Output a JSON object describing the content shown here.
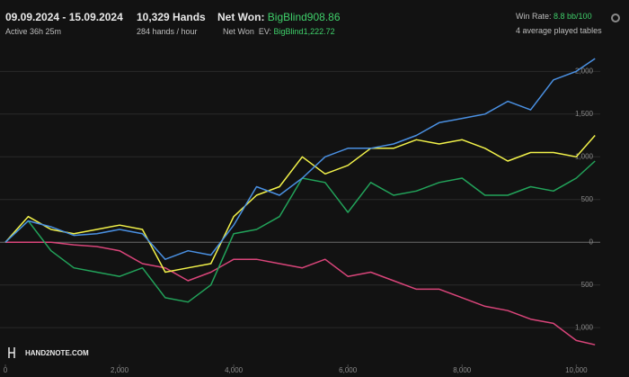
{
  "header": {
    "date_range": "09.09.2024 - 15.09.2024",
    "active": "Active 36h 25m",
    "hands": "10,329 Hands",
    "hands_per_hour": "284 hands / hour",
    "net_won_label": "Net Won:",
    "net_won_value": "BigBlind908.86",
    "net_won_ev_label": "Net Won  EV:",
    "net_won_ev_value": "BigBlind1,222.72",
    "win_rate_label": "Win Rate:",
    "win_rate_value": "8.8 bb/100",
    "tables": "4 average played tables",
    "logo": "HAND2NOTE.COM"
  },
  "chart_data": {
    "type": "line",
    "x": [
      0,
      400,
      800,
      1200,
      1600,
      2000,
      2400,
      2800,
      3200,
      3600,
      4000,
      4400,
      4800,
      5200,
      5600,
      6000,
      6400,
      6800,
      7200,
      7600,
      8000,
      8400,
      8800,
      9200,
      9600,
      10000,
      10329
    ],
    "series": [
      {
        "color": "#4a90e2",
        "values": [
          0,
          250,
          180,
          80,
          100,
          150,
          100,
          -200,
          -100,
          -150,
          200,
          650,
          550,
          750,
          1000,
          1100,
          1100,
          1150,
          1250,
          1400,
          1450,
          1500,
          1650,
          1550,
          1900,
          2000,
          2150
        ]
      },
      {
        "color": "#f2f24a",
        "values": [
          0,
          300,
          150,
          100,
          150,
          200,
          150,
          -350,
          -300,
          -250,
          300,
          550,
          650,
          1000,
          800,
          900,
          1100,
          1100,
          1200,
          1150,
          1200,
          1100,
          950,
          1050,
          1050,
          1000,
          1250
        ]
      },
      {
        "color": "#22a35a",
        "values": [
          0,
          250,
          -100,
          -300,
          -350,
          -400,
          -300,
          -650,
          -700,
          -500,
          100,
          150,
          300,
          750,
          700,
          350,
          700,
          550,
          600,
          700,
          750,
          550,
          550,
          650,
          600,
          750,
          950
        ]
      },
      {
        "color": "#d9457a",
        "values": [
          0,
          0,
          0,
          -30,
          -50,
          -100,
          -250,
          -300,
          -450,
          -350,
          -200,
          -200,
          -250,
          -300,
          -200,
          -400,
          -350,
          -450,
          -550,
          -550,
          -650,
          -750,
          -800,
          -900,
          -950,
          -1150,
          -1200
        ]
      }
    ],
    "xlim": [
      0,
      10420
    ],
    "ylim": [
      -1430,
      2330
    ],
    "xticks": [
      0,
      {
        "value": 2000,
        "label": "2,000"
      },
      {
        "value": 4000,
        "label": "4,000"
      },
      {
        "value": 6000,
        "label": "6,000"
      },
      {
        "value": 8000,
        "label": "8,000"
      },
      {
        "value": 10000,
        "label": "10,000"
      }
    ],
    "yticks": [
      {
        "value": 2000,
        "label": "2,000"
      },
      {
        "value": 1500,
        "label": "1,500"
      },
      {
        "value": 1000,
        "label": "1,000"
      },
      500,
      0,
      {
        "value": -500,
        "label": "500"
      },
      {
        "value": -1000,
        "label": "1,000"
      }
    ],
    "grid": true
  }
}
